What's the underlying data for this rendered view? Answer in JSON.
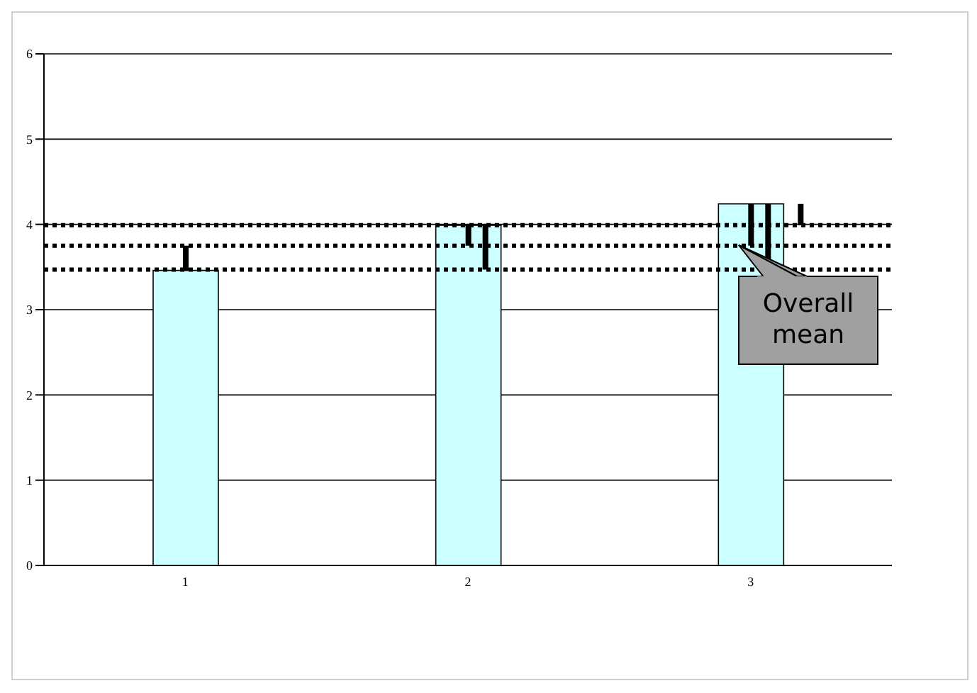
{
  "chart_data": {
    "type": "bar",
    "categories": [
      "1",
      "2",
      "3"
    ],
    "series": [
      {
        "color": "#ccffff",
        "values": [
          3.46,
          3.99,
          4.24
        ]
      },
      {
        "color": "#000000",
        "base": [
          3.46,
          3.75,
          3.75
        ],
        "values": [
          0.29,
          0.24,
          0.49
        ]
      },
      {
        "color": "#000000",
        "base": [
          null,
          3.47,
          3.47
        ],
        "values": [
          null,
          0.52,
          0.77
        ]
      },
      {
        "color": "#000000",
        "base": [
          null,
          null,
          3.99
        ],
        "values": [
          null,
          null,
          0.25
        ]
      }
    ],
    "ylim": [
      0,
      6
    ],
    "yticks": [
      0,
      1,
      2,
      3,
      4,
      5,
      6
    ],
    "grid": "y",
    "ref_lines": [
      {
        "axis": "y",
        "value": 3.75,
        "color": "#000000",
        "line_style": "dotted"
      },
      {
        "axis": "y",
        "value": 3.47,
        "color": "#000000",
        "line_style": "dotted"
      },
      {
        "axis": "y",
        "value": 3.99,
        "color": "#000000",
        "line_style": "dotted"
      }
    ],
    "annotations": [
      {
        "text": "Overall mean",
        "y": 3.75
      }
    ]
  }
}
